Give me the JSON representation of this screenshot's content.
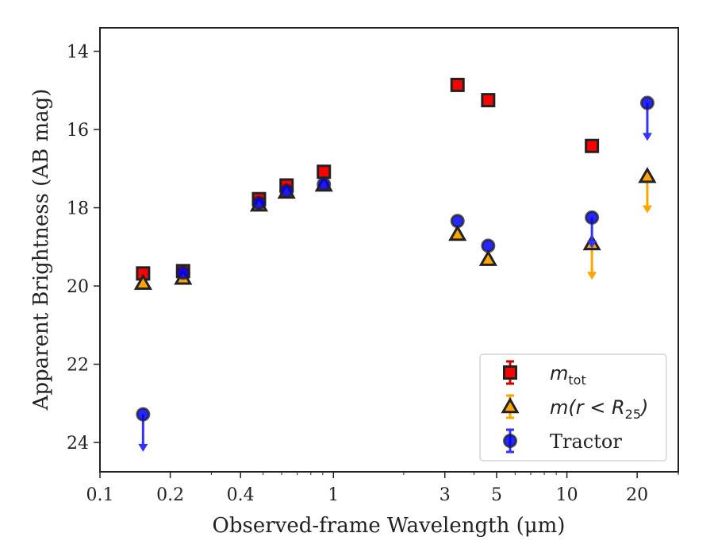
{
  "chart_data": {
    "type": "scatter",
    "xlabel": "Observed-frame Wavelength (μm)",
    "ylabel": "Apparent Brightness (AB mag)",
    "xscale": "log",
    "xlim": [
      0.1,
      30
    ],
    "ylim": [
      24.75,
      13.4
    ],
    "y_inverted": true,
    "grid": false,
    "legend_position": "bottom-right",
    "x_ticks": [
      {
        "value": 0.1,
        "label": "0.1"
      },
      {
        "value": 0.2,
        "label": "0.2"
      },
      {
        "value": 0.4,
        "label": "0.4"
      },
      {
        "value": 1,
        "label": "1"
      },
      {
        "value": 3,
        "label": "3"
      },
      {
        "value": 5,
        "label": "5"
      },
      {
        "value": 10,
        "label": "10"
      },
      {
        "value": 20,
        "label": "20"
      }
    ],
    "y_ticks": [
      {
        "value": 14,
        "label": "14"
      },
      {
        "value": 16,
        "label": "16"
      },
      {
        "value": 18,
        "label": "18"
      },
      {
        "value": 20,
        "label": "20"
      },
      {
        "value": 22,
        "label": "22"
      },
      {
        "value": 24,
        "label": "24"
      }
    ],
    "series": [
      {
        "name_base": "m",
        "name_sub": "tot",
        "marker": "square",
        "face_color": "#ff0000",
        "edge_color": "#222222",
        "errorbar_color": "#cc0000",
        "points": [
          {
            "x": 0.153,
            "y": 19.68,
            "upper_limit": false
          },
          {
            "x": 0.227,
            "y": 19.62,
            "upper_limit": false
          },
          {
            "x": 0.48,
            "y": 17.78,
            "upper_limit": false
          },
          {
            "x": 0.63,
            "y": 17.43,
            "upper_limit": false
          },
          {
            "x": 0.91,
            "y": 17.08,
            "upper_limit": false
          },
          {
            "x": 3.4,
            "y": 14.86,
            "upper_limit": false
          },
          {
            "x": 4.6,
            "y": 15.25,
            "upper_limit": false
          },
          {
            "x": 12.8,
            "y": 16.42,
            "upper_limit": false
          }
        ]
      },
      {
        "name_base": "m(r < R",
        "name_sub": "25",
        "name_end": ")",
        "marker": "triangle",
        "face_color": "#ffa500",
        "edge_color": "#222222",
        "errorbar_color": "#ffa500",
        "points": [
          {
            "x": 0.153,
            "y": 19.93,
            "upper_limit": false
          },
          {
            "x": 0.227,
            "y": 19.8,
            "upper_limit": false
          },
          {
            "x": 0.48,
            "y": 17.93,
            "upper_limit": false
          },
          {
            "x": 0.63,
            "y": 17.6,
            "upper_limit": false
          },
          {
            "x": 0.91,
            "y": 17.42,
            "upper_limit": false
          },
          {
            "x": 3.4,
            "y": 18.68,
            "upper_limit": false
          },
          {
            "x": 4.6,
            "y": 19.32,
            "upper_limit": false
          },
          {
            "x": 12.8,
            "y": 18.92,
            "upper_limit": true,
            "limit_to": 19.8
          },
          {
            "x": 22.1,
            "y": 17.2,
            "upper_limit": true,
            "limit_to": 18.1
          }
        ]
      },
      {
        "name": "Tractor",
        "marker": "circle",
        "face_color": "#0000ff",
        "edge_color": "#222222",
        "errorbar_color": "#3333ff",
        "points": [
          {
            "x": 0.153,
            "y": 23.28,
            "upper_limit": true,
            "limit_to": 24.2
          },
          {
            "x": 0.227,
            "y": 19.66,
            "upper_limit": false
          },
          {
            "x": 0.48,
            "y": 17.88,
            "upper_limit": false
          },
          {
            "x": 0.63,
            "y": 17.57,
            "upper_limit": false
          },
          {
            "x": 0.91,
            "y": 17.4,
            "upper_limit": false
          },
          {
            "x": 3.4,
            "y": 18.34,
            "upper_limit": false
          },
          {
            "x": 4.6,
            "y": 18.97,
            "upper_limit": false
          },
          {
            "x": 12.8,
            "y": 18.25,
            "upper_limit": true,
            "limit_to": 19.0
          },
          {
            "x": 22.1,
            "y": 15.32,
            "upper_limit": true,
            "limit_to": 16.25
          }
        ]
      }
    ]
  }
}
